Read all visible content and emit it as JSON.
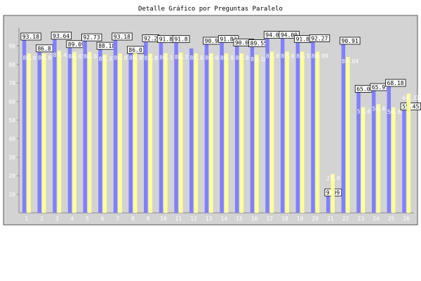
{
  "chart_data": {
    "type": "bar",
    "title": "Detalle Gráfico por Preguntas Paralelo",
    "xlabel": "",
    "ylabel": "",
    "ylim": [
      0,
      100
    ],
    "yticks": [
      10,
      20,
      30,
      40,
      50,
      60,
      70,
      80,
      90
    ],
    "grid": false,
    "legend": "none",
    "categories": [
      "1",
      "2",
      "3",
      "4",
      "5",
      "6",
      "7",
      "8",
      "9",
      "10",
      "11",
      "12",
      "13",
      "14",
      "15",
      "16",
      "17",
      "18",
      "19",
      "20",
      "21",
      "22",
      "23",
      "24",
      "25",
      "26"
    ],
    "series": [
      {
        "color": "#8080ff",
        "values": [
          93.18,
          86.8,
          93.64,
          89.09,
          92.73,
          88.18,
          93.18,
          86.0,
          92.2,
          91.8,
          91.8,
          88.64,
          90.91,
          91.82,
          90.0,
          89.55,
          94.09,
          94.09,
          91.82,
          92.27,
          9.09,
          90.91,
          65.0,
          65.91,
          68.18,
          55.45
        ],
        "labels": [
          "93.18",
          "86.8",
          "93.64",
          "89.09",
          "92.73",
          "88.18",
          "93.18",
          "86.0",
          "92.2",
          "91.8",
          "91.8",
          "",
          "90.91",
          "91.82",
          "90.00",
          "89.55",
          "94.09",
          "94.09",
          "91.82",
          "92.27",
          "9.09",
          "90.91",
          "65.0",
          "65.91",
          "68.18",
          "55.45"
        ]
      },
      {
        "color": "#ffff99",
        "values": [
          86.0,
          86.0,
          87.47,
          86.65,
          86.81,
          85.33,
          86.0,
          86.05,
          85.87,
          86.1,
          86.37,
          86.0,
          86.0,
          86.0,
          86.0,
          85.18,
          87.0,
          87.0,
          86.97,
          86.99,
          21.0,
          84.04,
          57.0,
          58.6,
          56.87,
          64.31
        ],
        "labels": [
          "86.0",
          "86.0",
          "87.47",
          "86.65",
          "86.81",
          "85.33",
          "86.0",
          "86.05",
          "85.87",
          "86.1",
          "86.37",
          "86.0",
          "86.0",
          "86.0",
          "86.0",
          "85.18",
          "87.0",
          "87.0",
          "86.97",
          "86.99",
          "21.0",
          "84.04",
          "57.0",
          "58.6",
          "56.87",
          "64.31"
        ]
      }
    ]
  }
}
